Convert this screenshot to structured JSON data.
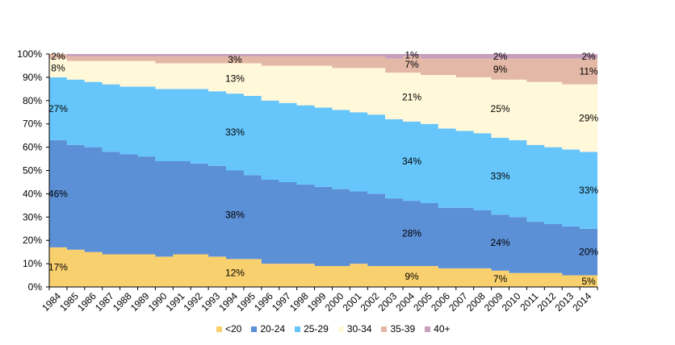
{
  "chart_data": {
    "type": "area",
    "stacked": true,
    "percent": true,
    "categories": [
      "1984",
      "1985",
      "1986",
      "1987",
      "1988",
      "1989",
      "1990",
      "1991",
      "1992",
      "1993",
      "1994",
      "1995",
      "1996",
      "1997",
      "1998",
      "1999",
      "2000",
      "2001",
      "2002",
      "2003",
      "2004",
      "2005",
      "2006",
      "2007",
      "2008",
      "2009",
      "2010",
      "2011",
      "2012",
      "2013",
      "2014"
    ],
    "y_ticks": [
      "0%",
      "10%",
      "20%",
      "30%",
      "40%",
      "50%",
      "60%",
      "70%",
      "80%",
      "90%",
      "100%"
    ],
    "ylim": [
      0,
      100
    ],
    "grid": false,
    "legend_position": "bottom",
    "series": [
      {
        "name": "<20",
        "color": "#f9d06e",
        "values": [
          17,
          16,
          15,
          14,
          14,
          14,
          13,
          14,
          14,
          13,
          12,
          12,
          10,
          10,
          10,
          9,
          9,
          10,
          9,
          9,
          9,
          9,
          8,
          8,
          8,
          7,
          6,
          6,
          6,
          5,
          5
        ]
      },
      {
        "name": "20-24",
        "color": "#5b8fd6",
        "values": [
          46,
          45,
          45,
          44,
          43,
          42,
          41,
          40,
          39,
          39,
          38,
          36,
          36,
          35,
          34,
          34,
          33,
          31,
          31,
          29,
          28,
          27,
          26,
          26,
          25,
          24,
          24,
          22,
          21,
          21,
          20
        ]
      },
      {
        "name": "25-29",
        "color": "#66c6fb",
        "values": [
          27,
          28,
          28,
          29,
          29,
          30,
          31,
          31,
          32,
          32,
          33,
          34,
          34,
          34,
          34,
          34,
          34,
          34,
          34,
          34,
          34,
          34,
          34,
          33,
          33,
          33,
          33,
          33,
          33,
          33,
          33
        ]
      },
      {
        "name": "30-34",
        "color": "#fff8d9",
        "values": [
          8,
          8,
          9,
          10,
          11,
          11,
          11,
          11,
          11,
          12,
          13,
          14,
          15,
          16,
          17,
          18,
          18,
          19,
          20,
          20,
          21,
          21,
          23,
          23,
          24,
          25,
          26,
          27,
          28,
          28,
          29
        ]
      },
      {
        "name": "35-39",
        "color": "#e3b8a6",
        "values": [
          2,
          2,
          2,
          2,
          2,
          2,
          3,
          3,
          3,
          3,
          3,
          3,
          4,
          4,
          4,
          4,
          5,
          5,
          5,
          6,
          7,
          7,
          7,
          8,
          8,
          9,
          9,
          10,
          10,
          11,
          11
        ]
      },
      {
        "name": "40+",
        "color": "#c79ebb",
        "values": [
          0,
          1,
          1,
          1,
          1,
          1,
          1,
          1,
          1,
          1,
          1,
          1,
          1,
          1,
          1,
          1,
          1,
          1,
          1,
          2,
          1,
          2,
          2,
          2,
          2,
          2,
          2,
          2,
          2,
          2,
          2
        ]
      }
    ],
    "data_labels": [
      {
        "series": "<20",
        "category": "1984",
        "text": "17%"
      },
      {
        "series": "20-24",
        "category": "1984",
        "text": "46%"
      },
      {
        "series": "25-29",
        "category": "1984",
        "text": "27%"
      },
      {
        "series": "30-34",
        "category": "1984",
        "text": "8%"
      },
      {
        "series": "35-39",
        "category": "1984",
        "text": "2%"
      },
      {
        "series": "<20",
        "category": "1994",
        "text": "12%"
      },
      {
        "series": "20-24",
        "category": "1994",
        "text": "38%"
      },
      {
        "series": "25-29",
        "category": "1994",
        "text": "33%"
      },
      {
        "series": "30-34",
        "category": "1994",
        "text": "13%"
      },
      {
        "series": "35-39",
        "category": "1994",
        "text": "3%"
      },
      {
        "series": "<20",
        "category": "2004",
        "text": "9%"
      },
      {
        "series": "20-24",
        "category": "2004",
        "text": "28%"
      },
      {
        "series": "25-29",
        "category": "2004",
        "text": "34%"
      },
      {
        "series": "30-34",
        "category": "2004",
        "text": "21%"
      },
      {
        "series": "35-39",
        "category": "2004",
        "text": "7%"
      },
      {
        "series": "40+",
        "category": "2004",
        "text": "1%"
      },
      {
        "series": "<20",
        "category": "2009",
        "text": "7%"
      },
      {
        "series": "20-24",
        "category": "2009",
        "text": "24%"
      },
      {
        "series": "25-29",
        "category": "2009",
        "text": "33%"
      },
      {
        "series": "30-34",
        "category": "2009",
        "text": "25%"
      },
      {
        "series": "35-39",
        "category": "2009",
        "text": "9%"
      },
      {
        "series": "40+",
        "category": "2009",
        "text": "2%"
      },
      {
        "series": "<20",
        "category": "2014",
        "text": "5%"
      },
      {
        "series": "20-24",
        "category": "2014",
        "text": "20%"
      },
      {
        "series": "25-29",
        "category": "2014",
        "text": "33%"
      },
      {
        "series": "30-34",
        "category": "2014",
        "text": "29%"
      },
      {
        "series": "35-39",
        "category": "2014",
        "text": "11%"
      },
      {
        "series": "40+",
        "category": "2014",
        "text": "2%"
      }
    ]
  }
}
